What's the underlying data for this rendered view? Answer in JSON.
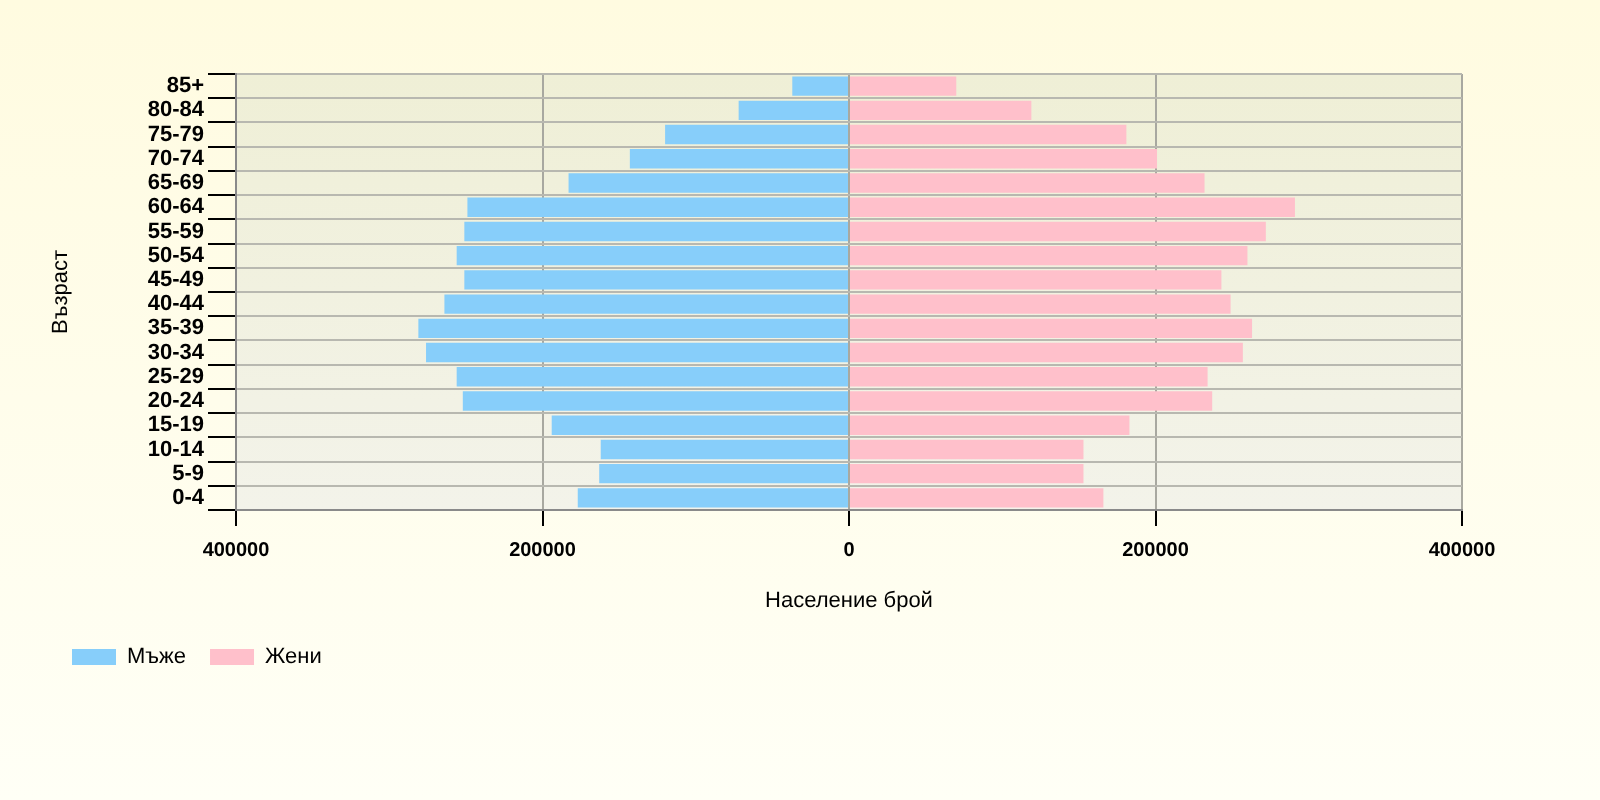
{
  "chart_data": {
    "type": "bar",
    "orientation": "horizontal",
    "stacked": true,
    "xlabel": "Население брой",
    "ylabel": "Възраст",
    "categories": [
      "85+",
      "80-84",
      "75-79",
      "70-74",
      "65-69",
      "60-64",
      "55-59",
      "50-54",
      "45-49",
      "40-44",
      "35-39",
      "30-34",
      "25-29",
      "20-24",
      "15-19",
      "10-14",
      "5-9",
      "0-4"
    ],
    "series": [
      {
        "name": "Мъже",
        "color": "#87cefa",
        "values": [
          -37000,
          -72000,
          -120000,
          -143000,
          -183000,
          -249000,
          -251000,
          -256000,
          -251000,
          -264000,
          -281000,
          -276000,
          -256000,
          -252000,
          -194000,
          -162000,
          -163000,
          -177000
        ]
      },
      {
        "name": "Жени",
        "color": "#ffc0cb",
        "values": [
          70000,
          119000,
          181000,
          201000,
          232000,
          291000,
          272000,
          260000,
          243000,
          249000,
          263000,
          257000,
          234000,
          237000,
          183000,
          153000,
          153000,
          166000
        ]
      }
    ],
    "xlim": [
      -400000,
      400000
    ],
    "xticks": [
      {
        "value": -400000,
        "label": "400000"
      },
      {
        "value": -200000,
        "label": "200000"
      },
      0,
      200000,
      400000
    ],
    "grid": true,
    "legend": "bottom left"
  }
}
